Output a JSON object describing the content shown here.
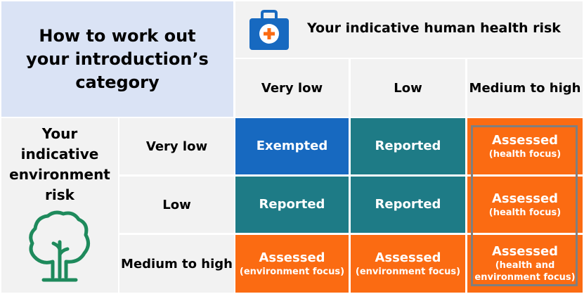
{
  "title": "How to work out your introduction’s category",
  "health_header": "Your indicative human health risk",
  "environment_header": "Your indicative environment risk",
  "columns": [
    "Very low",
    "Low",
    "Medium to high"
  ],
  "rows": [
    "Very low",
    "Low",
    "Medium to high"
  ],
  "grid": [
    [
      {
        "main": "Exempted",
        "sub": "",
        "type": "exempted"
      },
      {
        "main": "Reported",
        "sub": "",
        "type": "reported"
      },
      {
        "main": "Assessed",
        "sub": "(health focus)",
        "type": "assessed"
      }
    ],
    [
      {
        "main": "Reported",
        "sub": "",
        "type": "reported"
      },
      {
        "main": "Reported",
        "sub": "",
        "type": "reported"
      },
      {
        "main": "Assessed",
        "sub": "(health focus)",
        "type": "assessed"
      }
    ],
    [
      {
        "main": "Assessed",
        "sub": "(environment focus)",
        "type": "assessed"
      },
      {
        "main": "Assessed",
        "sub": "(environment focus)",
        "type": "assessed"
      },
      {
        "main": "Assessed",
        "sub": "(health and environment focus)",
        "type": "assessed"
      }
    ]
  ],
  "colors": {
    "exempted": "#1769c0",
    "reported": "#1e7b86",
    "assessed": "#fb6b12",
    "title_bg": "#dae3f5",
    "header_bg": "#f2f2f2",
    "medical_icon": "#1769c0",
    "tree_icon": "#1e8a5c"
  },
  "icons": {
    "health": "medical-kit-icon",
    "environment": "tree-icon"
  }
}
